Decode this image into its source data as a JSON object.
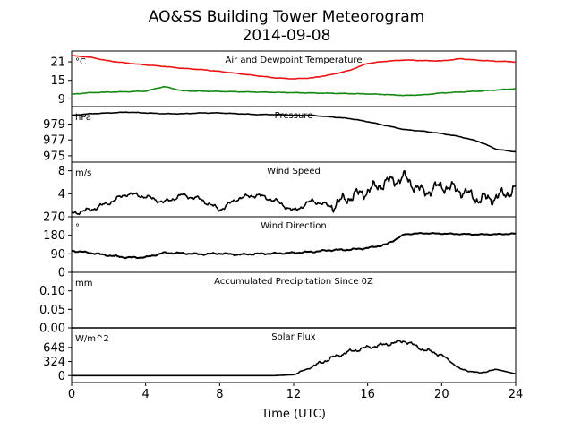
{
  "figure": {
    "title_line1": "AO&SS Building Tower Meteorogram",
    "title_line2": "2014-09-08",
    "xlabel": "Time (UTC)",
    "x_ticks": [
      "0",
      "4",
      "8",
      "12",
      "16",
      "20",
      "24"
    ]
  },
  "colors": {
    "red": "#ee1111",
    "green": "#118811",
    "black": "#000000"
  },
  "chart_data": [
    {
      "type": "line",
      "title": "Air and Dewpoint Temperature",
      "unit": "°C",
      "xlim": [
        0,
        24
      ],
      "ylim": [
        6.5,
        24.5
      ],
      "yticks": [
        9,
        15,
        21
      ],
      "x": [
        0,
        1,
        2,
        3,
        4,
        5,
        6,
        7,
        8,
        9,
        10,
        11,
        12,
        13,
        14,
        15,
        16,
        17,
        18,
        19,
        20,
        21,
        22,
        23,
        24
      ],
      "series": [
        {
          "color": "red",
          "values": [
            23,
            22.5,
            21.3,
            20.6,
            20,
            19.5,
            18.9,
            18.5,
            17.9,
            17.2,
            16.5,
            15.8,
            15.5,
            15.8,
            16.8,
            18.2,
            20.5,
            21.2,
            21.6,
            21.4,
            21.3,
            22.0,
            21.5,
            21.2,
            21.0
          ]
        },
        {
          "color": "green",
          "values": [
            10.5,
            11,
            11.2,
            11.3,
            11.5,
            13,
            11.6,
            11.5,
            11.4,
            11.3,
            11.2,
            11.1,
            11,
            10.9,
            10.8,
            10.7,
            10.6,
            10.4,
            10.1,
            10.3,
            10.9,
            11.2,
            11.5,
            11.9,
            12.3
          ]
        }
      ]
    },
    {
      "type": "line",
      "title": "Pressure",
      "unit": "hPa",
      "xlim": [
        0,
        24
      ],
      "ylim": [
        974.2,
        981.2
      ],
      "yticks": [
        975,
        977,
        979
      ],
      "x": [
        0,
        1,
        2,
        3,
        4,
        5,
        6,
        7,
        8,
        9,
        10,
        11,
        12,
        13,
        14,
        15,
        16,
        17,
        18,
        19,
        20,
        21,
        22,
        23,
        24
      ],
      "series": [
        {
          "color": "black",
          "values": [
            980.1,
            980.3,
            980.4,
            980.5,
            980.4,
            980.3,
            980.3,
            980.4,
            980.4,
            980.3,
            980.2,
            980.2,
            980.1,
            980.1,
            979.9,
            979.7,
            979.3,
            978.8,
            978.3,
            978.1,
            977.8,
            977.4,
            976.8,
            975.8,
            975.5
          ]
        }
      ]
    },
    {
      "type": "line",
      "title": "Wind Speed",
      "unit": "m/s",
      "xlim": [
        0,
        24
      ],
      "ylim": [
        0,
        9.5
      ],
      "yticks": [
        0,
        4,
        8
      ],
      "x": [
        0,
        1,
        2,
        3,
        4,
        5,
        6,
        7,
        8,
        9,
        10,
        11,
        12,
        13,
        14,
        15,
        16,
        17,
        18,
        19,
        20,
        21,
        22,
        23,
        24
      ],
      "series": [
        {
          "color": "black",
          "values": [
            0.6,
            1.2,
            2.4,
            4.0,
            3.5,
            2.5,
            3.8,
            3.0,
            1.2,
            3.2,
            3.8,
            2.8,
            1.0,
            2.8,
            1.8,
            3.4,
            4.5,
            6.0,
            6.8,
            4.2,
            5.4,
            4.6,
            3.0,
            3.4,
            4.8
          ]
        }
      ]
    },
    {
      "type": "line",
      "title": "Wind Direction",
      "unit": "°",
      "xlim": [
        0,
        24
      ],
      "ylim": [
        0,
        270
      ],
      "yticks": [
        0,
        90,
        180,
        270
      ],
      "x": [
        0,
        1,
        2,
        3,
        4,
        5,
        6,
        7,
        8,
        9,
        10,
        11,
        12,
        13,
        14,
        15,
        16,
        17,
        18,
        19,
        20,
        21,
        22,
        23,
        24
      ],
      "series": [
        {
          "color": "black",
          "values": [
            105,
            95,
            82,
            72,
            73,
            95,
            93,
            88,
            92,
            86,
            90,
            92,
            95,
            100,
            108,
            110,
            118,
            135,
            185,
            190,
            188,
            186,
            184,
            185,
            188
          ]
        }
      ]
    },
    {
      "type": "line",
      "title": "Accumulated Precipitation Since 0Z",
      "unit": "mm",
      "xlim": [
        0,
        24
      ],
      "ylim": [
        0,
        0.15
      ],
      "yticks": [
        "0.00",
        "0.05",
        "0.10"
      ],
      "x": [
        0,
        24
      ],
      "series": [
        {
          "color": "black",
          "values": [
            0,
            0
          ]
        }
      ]
    },
    {
      "type": "line",
      "title": "Solar Flux",
      "unit": "W/m^2",
      "xlim": [
        0,
        24
      ],
      "ylim": [
        -160,
        1100
      ],
      "yticks": [
        0,
        324,
        648
      ],
      "x": [
        0,
        1,
        2,
        3,
        4,
        5,
        6,
        7,
        8,
        9,
        10,
        11,
        12,
        13,
        14,
        15,
        16,
        17,
        18,
        19,
        20,
        21,
        22,
        23,
        24
      ],
      "series": [
        {
          "color": "black",
          "values": [
            0,
            0,
            0,
            0,
            0,
            0,
            0,
            0,
            0,
            0,
            0,
            0,
            20,
            200,
            400,
            550,
            650,
            720,
            800,
            600,
            480,
            150,
            60,
            140,
            40
          ]
        }
      ]
    }
  ]
}
